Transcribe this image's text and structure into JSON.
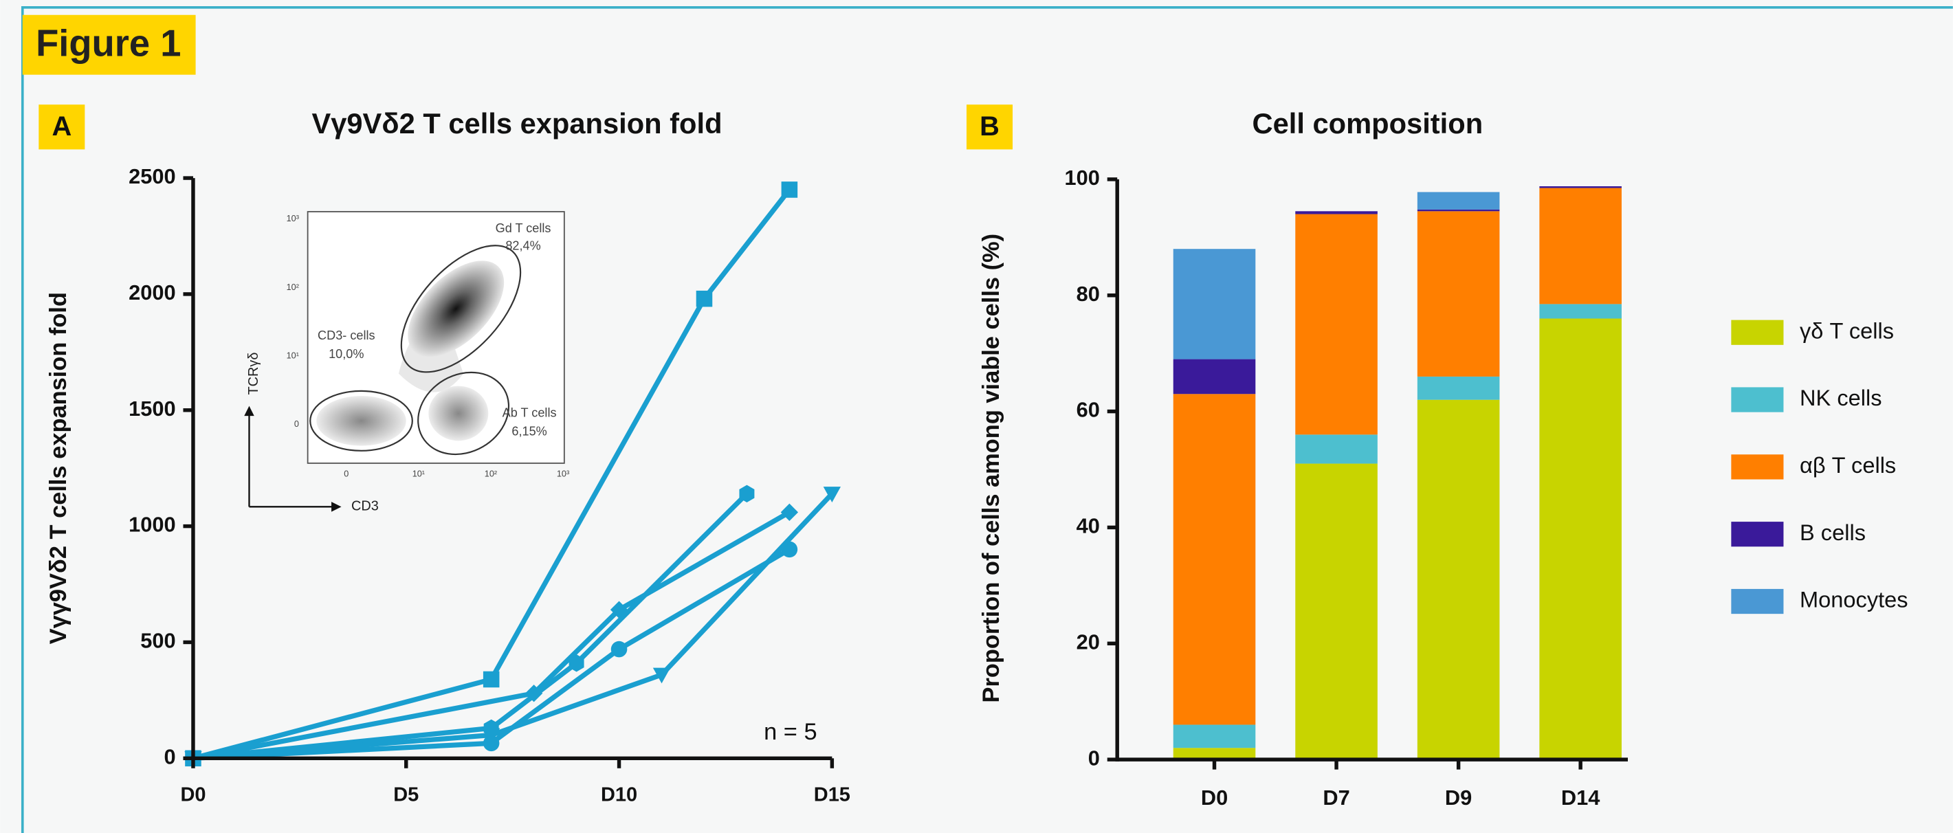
{
  "figure_label": "Figure 1",
  "chart_data": [
    {
      "type": "line",
      "panel_label": "A",
      "title": "Vγ9Vδ2 T cells expansion fold",
      "y_label": "Vγγ9Vδ2 T cells expansion fold",
      "annotation": "n = 5",
      "color": "#1a9fd0",
      "xlim": [
        0,
        15
      ],
      "xticks": [
        {
          "value": 0,
          "label": "D0"
        },
        {
          "value": 5,
          "label": "D5"
        },
        {
          "value": 10,
          "label": "D10"
        },
        {
          "value": 15,
          "label": "D15"
        }
      ],
      "ylim": [
        0,
        2500
      ],
      "yticks": [
        0,
        500,
        1000,
        1500,
        2000,
        2500
      ],
      "series": [
        {
          "marker": "square",
          "x": [
            0,
            7,
            12,
            14
          ],
          "values": [
            0,
            340,
            1980,
            2450
          ]
        },
        {
          "marker": "diamond",
          "x": [
            0,
            8,
            10,
            14
          ],
          "values": [
            0,
            280,
            640,
            1060
          ]
        },
        {
          "marker": "hexagon",
          "x": [
            0,
            7,
            9,
            13
          ],
          "values": [
            0,
            130,
            410,
            1140
          ]
        },
        {
          "marker": "circle",
          "x": [
            0,
            7,
            10,
            14
          ],
          "values": [
            0,
            65,
            470,
            900
          ]
        },
        {
          "marker": "triangle-down",
          "x": [
            0,
            7,
            11,
            15
          ],
          "values": [
            0,
            100,
            360,
            1140
          ]
        }
      ]
    },
    {
      "type": "stacked-bar",
      "panel_label": "B",
      "title": "Cell composition",
      "y_label": "Proportion of cells among viable cells (%)",
      "categories": [
        "D0",
        "D7",
        "D9",
        "D14"
      ],
      "ylim": [
        0,
        100
      ],
      "yticks": [
        0,
        20,
        40,
        60,
        80,
        100
      ],
      "series": [
        {
          "name": "γδ T cells",
          "color": "#c8d400",
          "values": [
            2,
            51,
            62,
            76
          ]
        },
        {
          "name": "NK cells",
          "color": "#4dbfcf",
          "values": [
            4,
            5,
            4,
            2.5
          ]
        },
        {
          "name": "αβ T cells",
          "color": "#ff7f00",
          "values": [
            57,
            38,
            28.5,
            20
          ]
        },
        {
          "name": "B cells",
          "color": "#3a1a9a",
          "values": [
            6,
            0.5,
            0.3,
            0.3
          ]
        },
        {
          "name": "Monocytes",
          "color": "#4a98d4",
          "values": [
            19,
            0,
            3,
            0
          ]
        }
      ]
    }
  ],
  "inset": {
    "x_label": "CD3",
    "y_label": "TCRγδ",
    "xticks": [
      "0",
      "10¹",
      "10²",
      "10³"
    ],
    "yticks": [
      "10³",
      "10²",
      "10¹",
      "0"
    ],
    "gates": [
      {
        "name": "Gd T cells",
        "percent": "82,4%"
      },
      {
        "name": "CD3- cells",
        "percent": "10,0%"
      },
      {
        "name": "Ab T cells",
        "percent": "6,15%"
      }
    ]
  }
}
